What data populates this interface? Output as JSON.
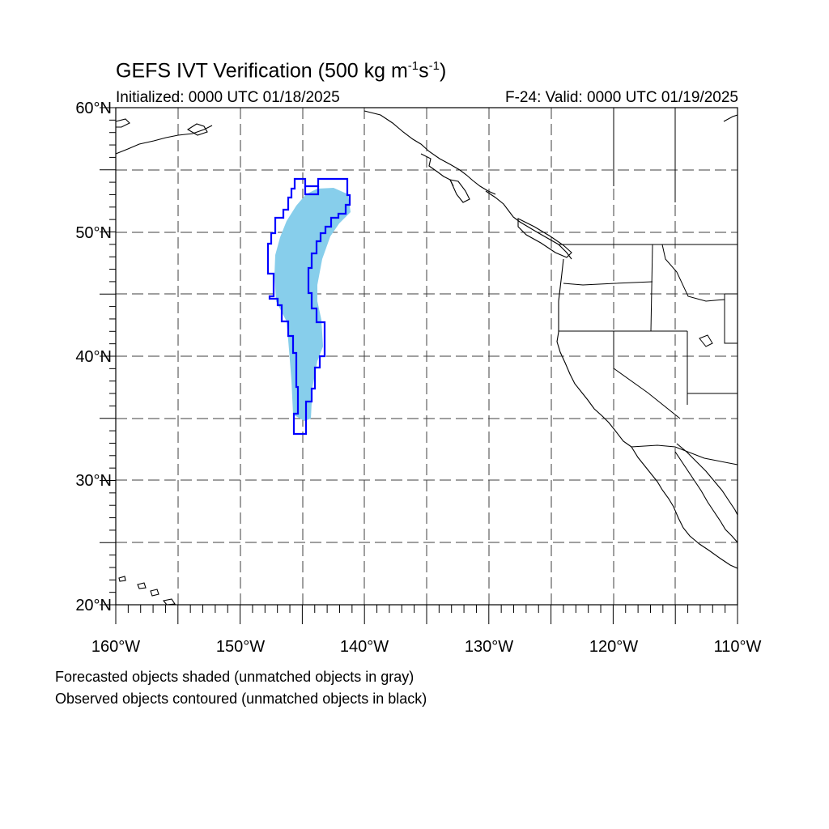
{
  "header": {
    "title": "GEFS IVT Verification (500 kg m",
    "title_sup1": "-1",
    "title_mid": "s",
    "title_sup2": "-1",
    "title_end": ")",
    "initialized": "Initialized: 0000 UTC 01/18/2025",
    "valid": "F-24: Valid: 0000 UTC 01/19/2025"
  },
  "map": {
    "lat_range": [
      20,
      60
    ],
    "lon_range": [
      -160,
      -110
    ],
    "lat_labels": [
      "20°N",
      "30°N",
      "40°N",
      "50°N",
      "60°N"
    ],
    "lon_labels": [
      "160°W",
      "150°W",
      "140°W",
      "130°W",
      "120°W",
      "110°W"
    ],
    "gridlines": "dashed",
    "forecast_color": "#87ceeb",
    "observed_color": "#0000ff"
  },
  "footer": {
    "line1": "Forecasted objects shaded (unmatched objects in gray)",
    "line2": "Observed objects contoured (unmatched objects in black)"
  }
}
